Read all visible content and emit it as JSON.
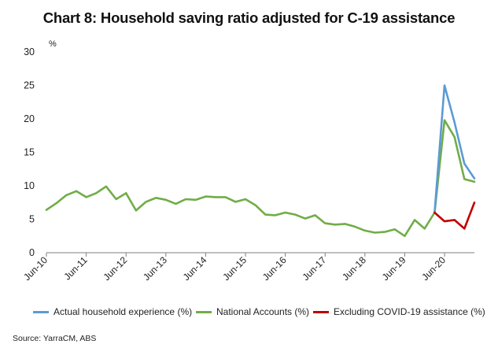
{
  "chart_data": {
    "type": "line",
    "title": "Chart 8: Household saving ratio adjusted for C-19 assistance",
    "unit_label": "%",
    "source": "Source: YarraCM, ABS",
    "ylim": [
      0,
      30
    ],
    "yticks": [
      0,
      5,
      10,
      15,
      20,
      25,
      30
    ],
    "x_tick_labels": [
      "Jun-10",
      "Jun-11",
      "Jun-12",
      "Jun-13",
      "Jun-14",
      "Jun-15",
      "Jun-16",
      "Jun-17",
      "Jun-18",
      "Jun-19",
      "Jun-20"
    ],
    "grid": false,
    "legend_position": "bottom",
    "series": [
      {
        "name": "National Accounts (%)",
        "color": "#70ad47",
        "start_index": 0,
        "values": [
          6.4,
          7.4,
          8.6,
          9.2,
          8.3,
          8.9,
          9.9,
          8.0,
          8.9,
          6.3,
          7.6,
          8.2,
          7.9,
          7.3,
          8.0,
          7.9,
          8.4,
          8.3,
          8.3,
          7.6,
          8.0,
          7.1,
          5.7,
          5.6,
          6.0,
          5.7,
          5.1,
          5.6,
          4.4,
          4.2,
          4.3,
          3.9,
          3.3,
          3.0,
          3.1,
          3.5,
          2.5,
          4.9,
          3.6,
          6.0,
          19.8,
          17.3,
          11.0,
          10.6
        ]
      },
      {
        "name": "Actual household experience (%)",
        "color": "#5b9bd5",
        "start_index": 39,
        "values": [
          6.0,
          25.0,
          19.5,
          13.3,
          11.1
        ]
      },
      {
        "name": "Excluding COVID-19 assistance (%)",
        "color": "#c00000",
        "start_index": 39,
        "values": [
          6.0,
          4.7,
          4.9,
          3.6,
          7.5
        ]
      }
    ],
    "legend": [
      {
        "label": "Actual household experience (%)",
        "color": "#5b9bd5"
      },
      {
        "label": "National Accounts (%)",
        "color": "#70ad47"
      },
      {
        "label": "Excluding COVID-19 assistance (%)",
        "color": "#c00000"
      }
    ]
  }
}
